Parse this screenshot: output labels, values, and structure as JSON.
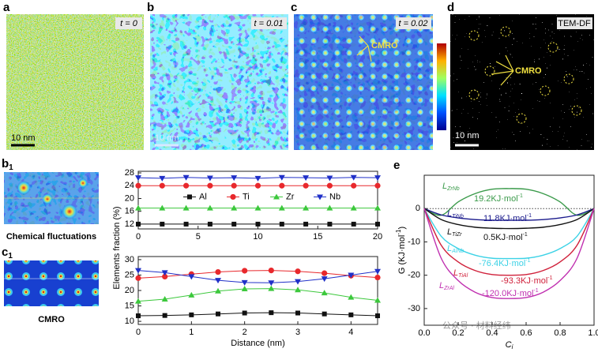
{
  "figure": {
    "panel_labels": {
      "a": "a",
      "b": "b",
      "c": "c",
      "d": "d",
      "b1": {
        "letter": "b",
        "sub": "1"
      },
      "c1": {
        "letter": "c",
        "sub": "1"
      },
      "e": "e"
    },
    "time_labels": {
      "a": "t = 0",
      "b": "t = 0.01",
      "c": "t = 0.02"
    },
    "tem_label": "TEM-DF",
    "scale_bars": {
      "a": "10 nm",
      "b": "10 nm",
      "d": "10 nm"
    },
    "cmro_c": "CMRO",
    "cmro_d": "CMRO",
    "b1_caption": "Chemical fluctuations",
    "c1_caption": "CMRO",
    "watermark": "公众号 · 材料经纬"
  },
  "chart_data": [
    {
      "type": "line",
      "ylabel": "Elements fraction (%)",
      "legend": "top-center",
      "x": [
        0,
        2,
        4,
        6,
        8,
        10,
        12,
        14,
        16,
        18,
        20
      ],
      "xlim": [
        0,
        20
      ],
      "xticks": [
        0,
        5,
        10,
        15,
        20
      ],
      "ylim": [
        10.5,
        28.5
      ],
      "yticks": [
        12,
        16,
        20,
        24,
        28
      ],
      "series": [
        {
          "name": "Al",
          "color": "#111111",
          "marker": "square",
          "values": [
            12,
            12,
            12,
            12,
            12,
            12,
            12,
            12,
            12,
            12,
            12
          ]
        },
        {
          "name": "Ti",
          "color": "#e8282c",
          "marker": "circle",
          "values": [
            24,
            24,
            24,
            24,
            24,
            24,
            24,
            24,
            24,
            24,
            24
          ]
        },
        {
          "name": "Zr",
          "color": "#3cc83c",
          "marker": "triangle-up",
          "values": [
            17,
            17,
            17,
            17,
            17,
            17,
            17,
            17,
            17,
            17,
            17
          ]
        },
        {
          "name": "Nb",
          "color": "#2030c8",
          "marker": "triangle-down",
          "values": [
            26.5,
            26.3,
            26.6,
            26.4,
            26.5,
            26.3,
            26.6,
            26.5,
            26.4,
            26.6,
            26.5
          ]
        }
      ]
    },
    {
      "type": "line",
      "xlabel": "Distance (nm)",
      "x": [
        0,
        0.5,
        1,
        1.5,
        2,
        2.5,
        3,
        3.5,
        4,
        4.5
      ],
      "xlim": [
        0,
        4.5
      ],
      "xticks": [
        0,
        1,
        2,
        3,
        4
      ],
      "ylim": [
        9,
        31
      ],
      "yticks": [
        10,
        15,
        20,
        25,
        30
      ],
      "series": [
        {
          "name": "Al",
          "color": "#111111",
          "marker": "square",
          "values": [
            11.8,
            11.9,
            12.1,
            12.4,
            12.7,
            12.8,
            12.7,
            12.4,
            12.1,
            11.8
          ]
        },
        {
          "name": "Ti",
          "color": "#e8282c",
          "marker": "circle",
          "values": [
            24,
            24.5,
            25.3,
            26,
            26.4,
            26.5,
            26.2,
            25.6,
            24.8,
            24.2
          ]
        },
        {
          "name": "Zr",
          "color": "#3cc83c",
          "marker": "triangle-up",
          "values": [
            16.5,
            17.2,
            18.5,
            19.8,
            20.5,
            20.6,
            20.2,
            19.2,
            17.8,
            16.8
          ]
        },
        {
          "name": "Nb",
          "color": "#2030c8",
          "marker": "triangle-down",
          "values": [
            26.5,
            25.8,
            24.5,
            23.3,
            22.6,
            22.5,
            22.9,
            23.8,
            25,
            26.2
          ]
        }
      ]
    },
    {
      "type": "curve",
      "xlabel": {
        "main": "C",
        "sub": "i"
      },
      "ylabel": {
        "text": "G (KJ·mol",
        "sup": "-1",
        "end": ")"
      },
      "zero_line": true,
      "x": [
        0,
        0.1,
        0.2,
        0.3,
        0.4,
        0.5,
        0.6,
        0.7,
        0.8,
        0.9,
        1
      ],
      "xlim": [
        0,
        1
      ],
      "xticks": [
        {
          "value": 0,
          "label": "0.0"
        },
        0.2,
        0.4,
        0.6,
        0.8,
        {
          "value": 1,
          "label": "1.0"
        }
      ],
      "ylim": [
        -35,
        10
      ],
      "yticks": [
        0,
        -10,
        -20,
        -30
      ],
      "series": [
        {
          "label": {
            "main": "L",
            "sub": "ZrNb"
          },
          "energy": {
            "text": "19.2KJ·mol",
            "sup": "-1"
          },
          "color": "#3a9a4a",
          "values": [
            0,
            -2,
            2,
            4.5,
            5.8,
            6,
            5.8,
            4.5,
            2,
            -2,
            0
          ]
        },
        {
          "label": {
            "main": "L",
            "sub": "TiNb"
          },
          "energy": {
            "text": "11.8KJ·mol",
            "sup": "-1"
          },
          "color": "#1a1a8c",
          "values": [
            0,
            -1.9,
            -2.8,
            -3.3,
            -3.5,
            -3.5,
            -3.5,
            -3.3,
            -2.8,
            -1.9,
            0
          ]
        },
        {
          "label": {
            "main": "L",
            "sub": "TiZr"
          },
          "energy": {
            "text": "0.5KJ·mol",
            "sup": "-1"
          },
          "color": "#111111",
          "values": [
            0,
            -3.3,
            -4.8,
            -5.6,
            -5.9,
            -6,
            -5.9,
            -5.6,
            -4.8,
            -3.3,
            0
          ]
        },
        {
          "label": {
            "main": "L",
            "sub": "AlNb"
          },
          "energy": {
            "text": "-76.4KJ·mol",
            "sup": "-1"
          },
          "color": "#3cd2e6",
          "values": [
            0,
            -8.3,
            -12,
            -14,
            -14.9,
            -15,
            -14.9,
            -14,
            -12,
            -8.3,
            0
          ]
        },
        {
          "label": {
            "main": "L",
            "sub": "TiAl"
          },
          "energy": {
            "text": "-93.3KJ·mol",
            "sup": "-1"
          },
          "color": "#d0203a",
          "values": [
            0,
            -11,
            -16,
            -18.6,
            -19.8,
            -20,
            -19.8,
            -18.6,
            -16,
            -11,
            0
          ]
        },
        {
          "label": {
            "main": "L",
            "sub": "ZrAl"
          },
          "energy": {
            "text": "-120.0KJ·mol",
            "sup": "-1"
          },
          "color": "#c030b0",
          "values": [
            0,
            -14.9,
            -21.6,
            -25.1,
            -26.7,
            -27,
            -26.7,
            -25.1,
            -21.6,
            -14.9,
            0
          ]
        }
      ]
    }
  ]
}
